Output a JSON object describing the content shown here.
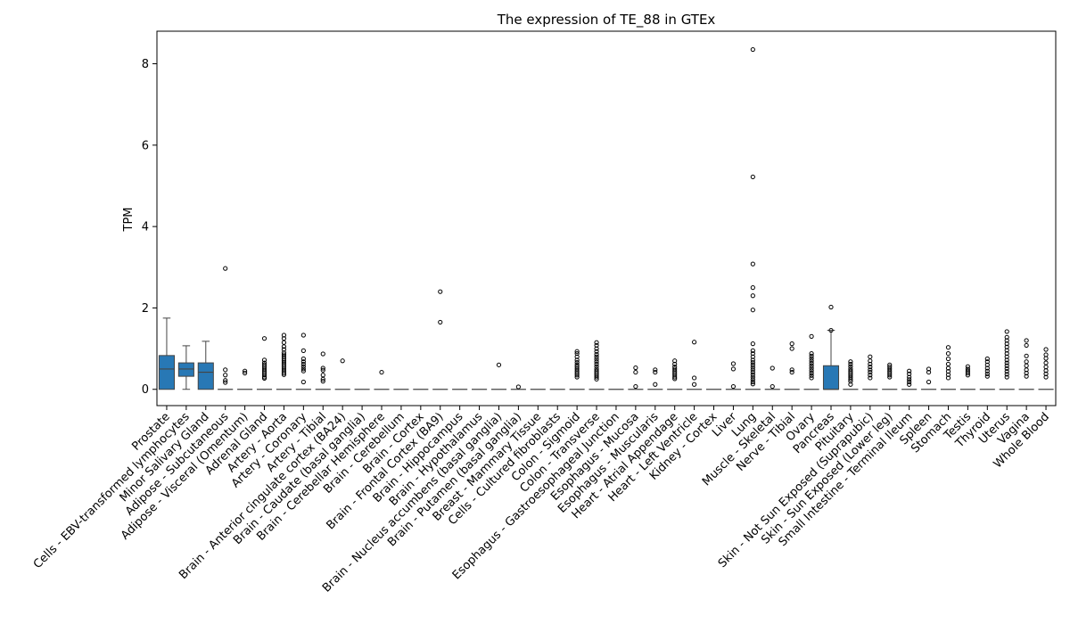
{
  "chart_data": {
    "type": "box",
    "title": "The expression of TE_88 in GTEx",
    "xlabel": "",
    "ylabel": "TPM",
    "ylim": [
      -0.4,
      8.8
    ],
    "yticks": [
      0,
      2,
      4,
      6,
      8
    ],
    "grid": false,
    "box_color": "#2878b5",
    "categories": [
      {
        "name": "Prostate",
        "q1": 0.0,
        "median": 0.5,
        "q3": 0.83,
        "whislo": 0.0,
        "whishi": 1.75,
        "fliers": []
      },
      {
        "name": "Cells - EBV-transformed lymphocytes",
        "q1": 0.32,
        "median": 0.5,
        "q3": 0.65,
        "whislo": 0.0,
        "whishi": 1.07,
        "fliers": []
      },
      {
        "name": "Minor Salivary Gland",
        "q1": 0.0,
        "median": 0.42,
        "q3": 0.65,
        "whislo": 0.0,
        "whishi": 1.18,
        "fliers": []
      },
      {
        "name": "Adipose - Subcutaneous",
        "q1": 0,
        "median": 0,
        "q3": 0,
        "whislo": 0,
        "whishi": 0,
        "fliers": [
          2.97,
          0.48,
          0.35,
          0.22,
          0.17
        ]
      },
      {
        "name": "Adipose - Visceral (Omentum)",
        "q1": 0,
        "median": 0,
        "q3": 0,
        "whislo": 0,
        "whishi": 0,
        "fliers": [
          0.45,
          0.4
        ]
      },
      {
        "name": "Adrenal Gland",
        "q1": 0,
        "median": 0,
        "q3": 0,
        "whislo": 0,
        "whishi": 0,
        "fliers": [
          1.25,
          0.72,
          0.65,
          0.6,
          0.55,
          0.5,
          0.45,
          0.4,
          0.35,
          0.3,
          0.27
        ]
      },
      {
        "name": "Artery - Aorta",
        "q1": 0,
        "median": 0,
        "q3": 0,
        "whislo": 0,
        "whishi": 0,
        "fliers": [
          1.33,
          1.25,
          1.15,
          1.05,
          0.98,
          0.9,
          0.85,
          0.8,
          0.75,
          0.7,
          0.65,
          0.6,
          0.55,
          0.5,
          0.45,
          0.4,
          0.36
        ]
      },
      {
        "name": "Artery - Coronary",
        "q1": 0,
        "median": 0,
        "q3": 0,
        "whislo": 0,
        "whishi": 0,
        "fliers": [
          1.33,
          0.95,
          0.75,
          0.68,
          0.62,
          0.56,
          0.5,
          0.45,
          0.18
        ]
      },
      {
        "name": "Artery - Tibial",
        "q1": 0,
        "median": 0,
        "q3": 0,
        "whislo": 0,
        "whishi": 0,
        "fliers": [
          0.87,
          0.52,
          0.47,
          0.35,
          0.25,
          0.2
        ]
      },
      {
        "name": "Brain - Anterior cingulate cortex (BA24)",
        "q1": 0,
        "median": 0,
        "q3": 0,
        "whislo": 0,
        "whishi": 0,
        "fliers": [
          0.7
        ]
      },
      {
        "name": "Brain - Caudate (basal ganglia)",
        "q1": 0,
        "median": 0,
        "q3": 0,
        "whislo": 0,
        "whishi": 0,
        "fliers": []
      },
      {
        "name": "Brain - Cerebellar Hemisphere",
        "q1": 0,
        "median": 0,
        "q3": 0,
        "whislo": 0,
        "whishi": 0,
        "fliers": [
          0.42
        ]
      },
      {
        "name": "Brain - Cerebellum",
        "q1": 0,
        "median": 0,
        "q3": 0,
        "whislo": 0,
        "whishi": 0,
        "fliers": []
      },
      {
        "name": "Brain - Cortex",
        "q1": 0,
        "median": 0,
        "q3": 0,
        "whislo": 0,
        "whishi": 0,
        "fliers": []
      },
      {
        "name": "Brain - Frontal Cortex (BA9)",
        "q1": 0,
        "median": 0,
        "q3": 0,
        "whislo": 0,
        "whishi": 0,
        "fliers": [
          2.4,
          1.65
        ]
      },
      {
        "name": "Brain - Hippocampus",
        "q1": 0,
        "median": 0,
        "q3": 0,
        "whislo": 0,
        "whishi": 0,
        "fliers": []
      },
      {
        "name": "Brain - Hypothalamus",
        "q1": 0,
        "median": 0,
        "q3": 0,
        "whislo": 0,
        "whishi": 0,
        "fliers": []
      },
      {
        "name": "Brain - Nucleus accumbens (basal ganglia)",
        "q1": 0,
        "median": 0,
        "q3": 0,
        "whislo": 0,
        "whishi": 0,
        "fliers": [
          0.6
        ]
      },
      {
        "name": "Brain - Putamen (basal ganglia)",
        "q1": 0,
        "median": 0,
        "q3": 0,
        "whislo": 0,
        "whishi": 0,
        "fliers": [
          0.06
        ]
      },
      {
        "name": "Breast - Mammary Tissue",
        "q1": 0,
        "median": 0,
        "q3": 0,
        "whislo": 0,
        "whishi": 0,
        "fliers": []
      },
      {
        "name": "Cells - Cultured fibroblasts",
        "q1": 0,
        "median": 0,
        "q3": 0,
        "whislo": 0,
        "whishi": 0,
        "fliers": []
      },
      {
        "name": "Colon - Sigmoid",
        "q1": 0,
        "median": 0,
        "q3": 0,
        "whislo": 0,
        "whishi": 0,
        "fliers": [
          0.93,
          0.88,
          0.8,
          0.72,
          0.66,
          0.6,
          0.55,
          0.5,
          0.45,
          0.4,
          0.35,
          0.3
        ]
      },
      {
        "name": "Colon - Transverse",
        "q1": 0,
        "median": 0,
        "q3": 0,
        "whislo": 0,
        "whishi": 0,
        "fliers": [
          1.15,
          1.08,
          1.0,
          0.93,
          0.86,
          0.8,
          0.74,
          0.68,
          0.62,
          0.56,
          0.5,
          0.45,
          0.4,
          0.35,
          0.3,
          0.25
        ]
      },
      {
        "name": "Esophagus - Gastroesophageal Junction",
        "q1": 0,
        "median": 0,
        "q3": 0,
        "whislo": 0,
        "whishi": 0,
        "fliers": []
      },
      {
        "name": "Esophagus - Mucosa",
        "q1": 0,
        "median": 0,
        "q3": 0,
        "whislo": 0,
        "whishi": 0,
        "fliers": [
          0.53,
          0.42,
          0.07
        ]
      },
      {
        "name": "Esophagus - Muscularis",
        "q1": 0,
        "median": 0,
        "q3": 0,
        "whislo": 0,
        "whishi": 0,
        "fliers": [
          0.48,
          0.42,
          0.12
        ]
      },
      {
        "name": "Heart - Atrial Appendage",
        "q1": 0,
        "median": 0,
        "q3": 0,
        "whislo": 0,
        "whishi": 0,
        "fliers": [
          0.7,
          0.62,
          0.55,
          0.5,
          0.45,
          0.4,
          0.35,
          0.3,
          0.26
        ]
      },
      {
        "name": "Heart - Left Ventricle",
        "q1": 0,
        "median": 0,
        "q3": 0,
        "whislo": 0,
        "whishi": 0,
        "fliers": [
          1.16,
          0.28,
          0.12
        ]
      },
      {
        "name": "Kidney - Cortex",
        "q1": 0,
        "median": 0,
        "q3": 0,
        "whislo": 0,
        "whishi": 0,
        "fliers": []
      },
      {
        "name": "Liver",
        "q1": 0,
        "median": 0,
        "q3": 0,
        "whislo": 0,
        "whishi": 0,
        "fliers": [
          0.63,
          0.5,
          0.07
        ]
      },
      {
        "name": "Lung",
        "q1": 0,
        "median": 0,
        "q3": 0,
        "whislo": 0,
        "whishi": 0,
        "fliers": [
          8.35,
          5.22,
          3.08,
          2.5,
          2.3,
          1.95,
          1.12,
          0.95,
          0.88,
          0.8,
          0.72,
          0.66,
          0.6,
          0.54,
          0.48,
          0.42,
          0.36,
          0.3,
          0.24,
          0.18,
          0.13
        ]
      },
      {
        "name": "Muscle - Skeletal",
        "q1": 0,
        "median": 0,
        "q3": 0,
        "whislo": 0,
        "whishi": 0,
        "fliers": [
          0.52,
          0.07
        ]
      },
      {
        "name": "Nerve - Tibial",
        "q1": 0,
        "median": 0,
        "q3": 0,
        "whislo": 0,
        "whishi": 0,
        "fliers": [
          1.12,
          1.0,
          0.48,
          0.42
        ]
      },
      {
        "name": "Ovary",
        "q1": 0,
        "median": 0,
        "q3": 0,
        "whislo": 0,
        "whishi": 0,
        "fliers": [
          1.3,
          0.88,
          0.82,
          0.76,
          0.7,
          0.64,
          0.58,
          0.52,
          0.46,
          0.4,
          0.34,
          0.28
        ]
      },
      {
        "name": "Pancreas",
        "q1": 0.0,
        "median": 0.0,
        "q3": 0.58,
        "whislo": 0.0,
        "whishi": 1.45,
        "fliers": [
          2.02,
          1.45
        ]
      },
      {
        "name": "Pituitary",
        "q1": 0,
        "median": 0,
        "q3": 0,
        "whislo": 0,
        "whishi": 0,
        "fliers": [
          0.68,
          0.62,
          0.56,
          0.5,
          0.45,
          0.4,
          0.35,
          0.3,
          0.25,
          0.2,
          0.12
        ]
      },
      {
        "name": "Skin - Not Sun Exposed (Suprapubic)",
        "q1": 0,
        "median": 0,
        "q3": 0,
        "whislo": 0,
        "whishi": 0,
        "fliers": [
          0.8,
          0.7,
          0.62,
          0.55,
          0.48,
          0.42,
          0.35,
          0.28
        ]
      },
      {
        "name": "Skin - Sun Exposed (Lower leg)",
        "q1": 0,
        "median": 0,
        "q3": 0,
        "whislo": 0,
        "whishi": 0,
        "fliers": [
          0.6,
          0.55,
          0.5,
          0.45,
          0.4,
          0.35,
          0.3
        ]
      },
      {
        "name": "Small Intestine - Terminal Ileum",
        "q1": 0,
        "median": 0,
        "q3": 0,
        "whislo": 0,
        "whishi": 0,
        "fliers": [
          0.45,
          0.38,
          0.3,
          0.24,
          0.18,
          0.12
        ]
      },
      {
        "name": "Spleen",
        "q1": 0,
        "median": 0,
        "q3": 0,
        "whislo": 0,
        "whishi": 0,
        "fliers": [
          0.5,
          0.42,
          0.18
        ]
      },
      {
        "name": "Stomach",
        "q1": 0,
        "median": 0,
        "q3": 0,
        "whislo": 0,
        "whishi": 0,
        "fliers": [
          1.03,
          0.88,
          0.75,
          0.62,
          0.52,
          0.44,
          0.36,
          0.28
        ]
      },
      {
        "name": "Testis",
        "q1": 0,
        "median": 0,
        "q3": 0,
        "whislo": 0,
        "whishi": 0,
        "fliers": [
          0.56,
          0.5,
          0.45,
          0.4,
          0.35
        ]
      },
      {
        "name": "Thyroid",
        "q1": 0,
        "median": 0,
        "q3": 0,
        "whislo": 0,
        "whishi": 0,
        "fliers": [
          0.75,
          0.68,
          0.6,
          0.52,
          0.45,
          0.38,
          0.32
        ]
      },
      {
        "name": "Uterus",
        "q1": 0,
        "median": 0,
        "q3": 0,
        "whislo": 0,
        "whishi": 0,
        "fliers": [
          1.42,
          1.28,
          1.2,
          1.12,
          1.04,
          0.96,
          0.88,
          0.8,
          0.72,
          0.65,
          0.58,
          0.51,
          0.44,
          0.37,
          0.3
        ]
      },
      {
        "name": "Vagina",
        "q1": 0,
        "median": 0,
        "q3": 0,
        "whislo": 0,
        "whishi": 0,
        "fliers": [
          1.2,
          1.08,
          0.82,
          0.68,
          0.58,
          0.48,
          0.4,
          0.32
        ]
      },
      {
        "name": "Whole Blood",
        "q1": 0,
        "median": 0,
        "q3": 0,
        "whislo": 0,
        "whishi": 0,
        "fliers": [
          0.98,
          0.85,
          0.76,
          0.65,
          0.55,
          0.46,
          0.38,
          0.3
        ]
      }
    ]
  }
}
